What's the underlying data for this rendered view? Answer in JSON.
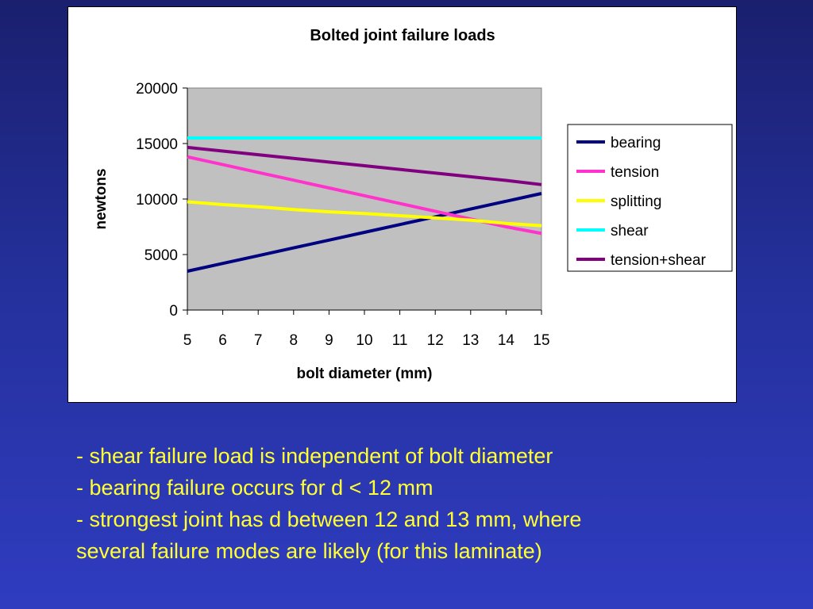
{
  "chart_data": {
    "type": "line",
    "title": "Bolted joint failure loads",
    "xlabel": "bolt diameter (mm)",
    "ylabel": "newtons",
    "x": [
      5,
      6,
      7,
      8,
      9,
      10,
      11,
      12,
      13,
      14,
      15
    ],
    "ylim": [
      0,
      20000
    ],
    "yticks": [
      "0",
      "5000",
      "10000",
      "15000",
      "20000"
    ],
    "xticks": [
      "5",
      "6",
      "7",
      "8",
      "9",
      "10",
      "11",
      "12",
      "13",
      "14",
      "15"
    ],
    "grid": false,
    "legend_position": "right",
    "plot_background": "#c0c0c0",
    "series": [
      {
        "name": "bearing",
        "color": "#000080",
        "values": [
          3500,
          4200,
          4900,
          5600,
          6300,
          7000,
          7700,
          8400,
          9100,
          9800,
          10500
        ]
      },
      {
        "name": "tension",
        "color": "#ff33cc",
        "values": [
          13800,
          13100,
          12400,
          11700,
          11000,
          10300,
          9600,
          8900,
          8200,
          7500,
          6900
        ]
      },
      {
        "name": "splitting",
        "color": "#ffff00",
        "values": [
          9750,
          9500,
          9300,
          9050,
          8850,
          8700,
          8500,
          8300,
          8100,
          7800,
          7600
        ]
      },
      {
        "name": "shear",
        "color": "#00ffff",
        "values": [
          15500,
          15500,
          15500,
          15500,
          15500,
          15500,
          15500,
          15500,
          15500,
          15500,
          15500
        ]
      },
      {
        "name": "tension+shear",
        "color": "#800080",
        "values": [
          14650,
          14320,
          13990,
          13660,
          13330,
          13000,
          12670,
          12340,
          12010,
          11680,
          11300
        ]
      }
    ]
  },
  "notes": [
    "-  shear failure load is independent of bolt diameter",
    "-  bearing failure occurs for d < 12 mm",
    "-  strongest joint has d between 12 and 13 mm, where",
    "several failure modes are likely (for this laminate)"
  ]
}
